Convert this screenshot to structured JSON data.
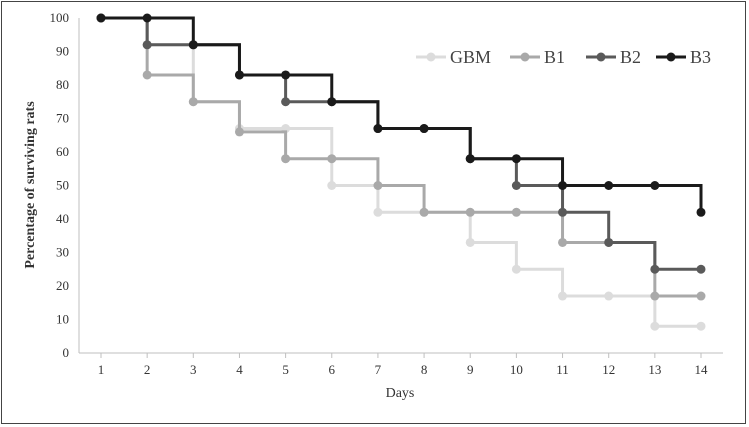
{
  "chart_data": {
    "type": "line",
    "title": "",
    "xlabel": "Days",
    "ylabel": "Percentage of surviving rats",
    "x": [
      1,
      2,
      3,
      4,
      5,
      6,
      7,
      8,
      9,
      10,
      11,
      12,
      13,
      14
    ],
    "ylim": [
      0,
      100
    ],
    "yticks": [
      0,
      10,
      20,
      30,
      40,
      50,
      60,
      70,
      80,
      90,
      100
    ],
    "step": "post",
    "grid": false,
    "legend_position": "top-right",
    "series": [
      {
        "name": "GBM",
        "color": "#dcdcdc",
        "values": [
          100,
          92,
          75,
          67,
          67,
          50,
          42,
          42,
          33,
          25,
          17,
          17,
          8,
          8
        ]
      },
      {
        "name": "B1",
        "color": "#a9a9a9",
        "values": [
          100,
          83,
          75,
          66,
          58,
          58,
          50,
          42,
          42,
          42,
          33,
          33,
          17,
          17
        ]
      },
      {
        "name": "B2",
        "color": "#5a5a5a",
        "values": [
          100,
          92,
          92,
          83,
          75,
          75,
          67,
          67,
          58,
          50,
          42,
          33,
          25,
          25
        ]
      },
      {
        "name": "B3",
        "color": "#1a1a1a",
        "values": [
          100,
          100,
          92,
          83,
          83,
          75,
          67,
          67,
          58,
          58,
          50,
          50,
          50,
          42
        ]
      }
    ]
  }
}
